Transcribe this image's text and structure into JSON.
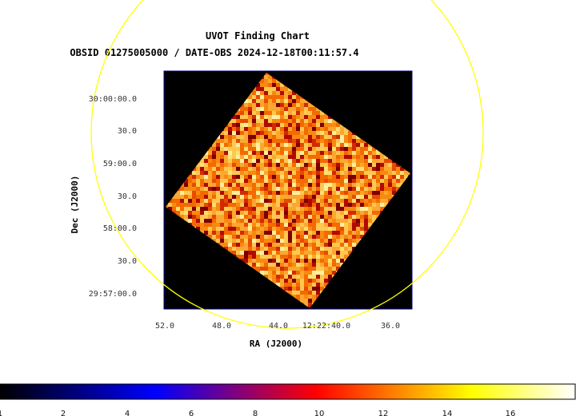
{
  "chart_data": {
    "type": "heatmap",
    "title": "UVOT Finding Chart",
    "subtitle": "OBSID 01275005000 / DATE-OBS 2024-12-18T00:11:57.4",
    "xlabel": "RA (J2000)",
    "ylabel": "Dec (J2000)",
    "x_ticks": [
      "52.0",
      "48.0",
      "44.0",
      "12:22:40.0",
      "36.0"
    ],
    "y_ticks": [
      "30:00:00.0",
      "30.0",
      "59:00.0",
      "30.0",
      "58:00.0",
      "30.0",
      "29:57:00.0"
    ],
    "colorbar": {
      "ticks": [
        "1",
        "2",
        "4",
        "6",
        "8",
        "10",
        "12",
        "14",
        "16"
      ],
      "colormap": [
        "#000000",
        "#0000ff",
        "#ff0000",
        "#ffff00",
        "#ffffff"
      ]
    },
    "image": {
      "background": "#000000",
      "frame_color": "#00008b",
      "rotation_deg": 36,
      "typical_range": [
        8,
        15
      ]
    },
    "circle_color": "#ffff00"
  }
}
